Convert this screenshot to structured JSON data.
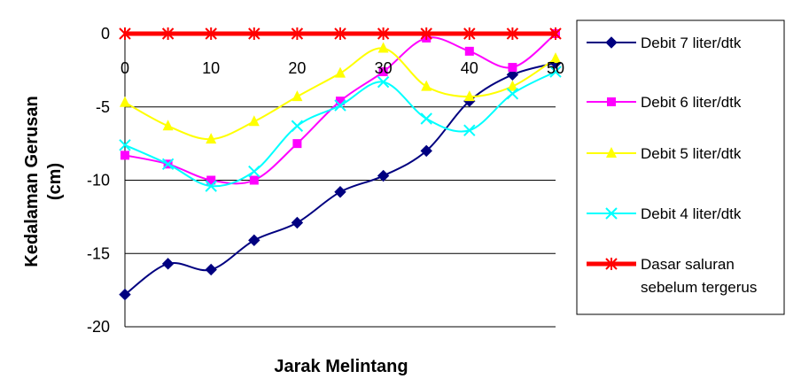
{
  "chart_data": {
    "type": "line",
    "title": "",
    "xlabel": "Jarak Melintang",
    "ylabel_lines": [
      "Kedalaman Gerusan",
      "(cm)"
    ],
    "xlim": [
      0,
      50
    ],
    "ylim": [
      -20,
      0
    ],
    "x_ticks": [
      0,
      10,
      20,
      30,
      40,
      50
    ],
    "y_ticks": [
      0,
      -5,
      -10,
      -15,
      -20
    ],
    "grid": "horizontal",
    "legend_position": "right",
    "x": [
      0,
      5,
      10,
      15,
      20,
      25,
      30,
      35,
      40,
      45,
      50
    ],
    "series": [
      {
        "name": "Debit 7 liter/dtk",
        "color": "#000080",
        "marker": "diamond",
        "values": [
          -17.8,
          -15.7,
          -16.1,
          -14.1,
          -12.9,
          -10.8,
          -9.7,
          -8.0,
          -4.6,
          -2.8,
          -2.0
        ]
      },
      {
        "name": "Debit 6 liter/dtk",
        "color": "#FF00FF",
        "marker": "square",
        "values": [
          -8.3,
          -8.9,
          -10.0,
          -10.0,
          -7.5,
          -4.6,
          -2.6,
          -0.3,
          -1.2,
          -2.3,
          0.0
        ]
      },
      {
        "name": "Debit 5 liter/dtk",
        "color": "#FFFF00",
        "marker": "triangle",
        "values": [
          -4.7,
          -6.3,
          -7.2,
          -6.0,
          -4.3,
          -2.7,
          -1.0,
          -3.6,
          -4.3,
          -3.6,
          -1.7
        ]
      },
      {
        "name": "Debit 4 liter/dtk",
        "color": "#00FFFF",
        "marker": "x",
        "values": [
          -7.6,
          -8.9,
          -10.4,
          -9.4,
          -6.3,
          -4.9,
          -3.3,
          -5.8,
          -6.6,
          -4.1,
          -2.6
        ]
      },
      {
        "name_lines": [
          "Dasar saluran",
          "sebelum tergerus"
        ],
        "color": "#FF0000",
        "marker": "asterisk",
        "values": [
          0,
          0,
          0,
          0,
          0,
          0,
          0,
          0,
          0,
          0,
          0
        ]
      }
    ]
  }
}
